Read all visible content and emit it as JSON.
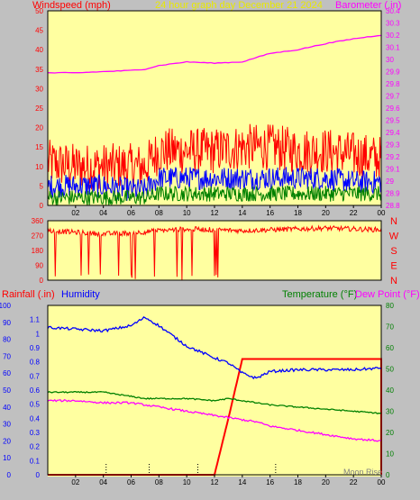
{
  "top": {
    "left_title": "Windspeed (mph)",
    "center_title": "24 hour graph day   December 21 2024",
    "right_title": "Barometer (.in)",
    "x_ticks": [
      "02",
      "04",
      "06",
      "08",
      "10",
      "12",
      "14",
      "16",
      "18",
      "20",
      "22",
      "00"
    ],
    "left_ticks": [
      "0",
      "5",
      "10",
      "15",
      "20",
      "25",
      "30",
      "35",
      "40",
      "45",
      "50"
    ],
    "right_ticks": [
      "28.8",
      "28.9",
      "29",
      "29.1",
      "29.2",
      "29.3",
      "29.4",
      "29.5",
      "29.6",
      "29.7",
      "29.8",
      "29.9",
      "30",
      "30.1",
      "30.2",
      "30.3",
      "30.4"
    ],
    "colors": {
      "gust": "#ff0000",
      "average": "#0000ff",
      "minimum": "#008000",
      "barometer": "#ff00ff"
    }
  },
  "direction": {
    "left_ticks": [
      "0",
      "90",
      "180",
      "270",
      "360"
    ],
    "compass": [
      "N",
      "W",
      "S",
      "E",
      "N"
    ],
    "color": "#ff0000"
  },
  "bottom": {
    "left_title": "Rainfall (.in)",
    "center_title": "Humidity",
    "right_title_temp": "Temperature (°F)",
    "right_title_dew": "Dew Point (°F)",
    "moon_label": "Moon Rise",
    "x_ticks": [
      "02",
      "04",
      "06",
      "08",
      "10",
      "12",
      "14",
      "16",
      "18",
      "20",
      "22",
      "00"
    ],
    "humidity_ticks": [
      "0",
      "10",
      "20",
      "30",
      "40",
      "50",
      "60",
      "70",
      "80",
      "90",
      "100"
    ],
    "rain_ticks": [
      "0",
      "0.1",
      "0.2",
      "0.3",
      "0.4",
      "0.5",
      "0.6",
      "0.7",
      "0.8",
      "0.9",
      "1",
      "1.1"
    ],
    "temp_ticks": [
      "0",
      "10",
      "20",
      "30",
      "40",
      "50",
      "60",
      "70",
      "80"
    ],
    "colors": {
      "rain": "#ff0000",
      "humidity": "#0000ff",
      "temperature": "#008000",
      "dewpoint": "#ff00ff"
    }
  },
  "chart_data": [
    {
      "type": "line",
      "title": "24 hour graph day   December 21 2024",
      "xlabel": "",
      "ylabel": "Windspeed (mph)",
      "y2label": "Barometer (.in)",
      "x": [
        0,
        2,
        4,
        6,
        7,
        8,
        10,
        12,
        14,
        16,
        18,
        20,
        22,
        24
      ],
      "ylim": [
        0,
        50
      ],
      "y2lim": [
        28.8,
        30.4
      ],
      "grid": false,
      "series": [
        {
          "name": "Windspeed gust (red)",
          "axis": "left",
          "values": [
            11,
            10,
            10,
            10,
            10,
            14,
            14,
            14,
            15,
            15,
            14,
            14,
            13,
            12
          ]
        },
        {
          "name": "Windspeed average (blue)",
          "axis": "left",
          "values": [
            5,
            5,
            5,
            4,
            4,
            7,
            7,
            7,
            7,
            7,
            7,
            7,
            6,
            6
          ]
        },
        {
          "name": "Windspeed minimum (green)",
          "axis": "left",
          "values": [
            2,
            2,
            2,
            2,
            2,
            3,
            3,
            3,
            3,
            3,
            3,
            3,
            3,
            3
          ]
        },
        {
          "name": "Barometer",
          "axis": "right",
          "values": [
            29.89,
            29.89,
            29.9,
            29.91,
            29.92,
            29.95,
            29.98,
            29.97,
            29.98,
            30.05,
            30.08,
            30.13,
            30.17,
            30.2
          ]
        }
      ]
    },
    {
      "type": "line",
      "title": "",
      "xlabel": "",
      "ylabel": "Wind direction (degrees)",
      "x": [
        0,
        2,
        4,
        6,
        8,
        10,
        12,
        14,
        16,
        18,
        20,
        22,
        24
      ],
      "ylim": [
        0,
        360
      ],
      "grid": false,
      "series": [
        {
          "name": "Wind direction",
          "values": [
            300,
            290,
            280,
            285,
            300,
            310,
            305,
            300,
            305,
            310,
            315,
            310,
            305
          ]
        }
      ]
    },
    {
      "type": "line",
      "title": "",
      "xlabel": "",
      "ylabel": "Humidity",
      "y2label": "Temperature (°F) / Dew Point (°F)",
      "x": [
        0,
        2,
        4,
        6,
        7,
        8,
        10,
        12,
        13,
        14,
        15,
        16,
        18,
        20,
        22,
        24
      ],
      "ylim": [
        0,
        100
      ],
      "y2lim": [
        0,
        80
      ],
      "grid": false,
      "series": [
        {
          "name": "Rainfall (.in)",
          "axis": "rain",
          "rain_range": [
            0,
            1.2
          ],
          "values": [
            0,
            0,
            0,
            0,
            0,
            0,
            0,
            0,
            0.4,
            0.82,
            0.82,
            0.82,
            0.82,
            0.82,
            0.82,
            0.82
          ]
        },
        {
          "name": "Humidity",
          "axis": "left",
          "values": [
            87,
            86,
            85,
            88,
            93,
            88,
            76,
            69,
            66,
            60,
            57,
            61,
            62,
            62,
            62,
            63
          ]
        },
        {
          "name": "Temperature (°F)",
          "axis": "right",
          "values": [
            39,
            39,
            39,
            37,
            36,
            36,
            36,
            35,
            36,
            35,
            34,
            33,
            32,
            31,
            30,
            29
          ]
        },
        {
          "name": "Dew Point (°F)",
          "axis": "right",
          "values": [
            35,
            35,
            34,
            34,
            33,
            32,
            30,
            28,
            27,
            26,
            25,
            23,
            21,
            19,
            17,
            16
          ]
        }
      ]
    }
  ]
}
